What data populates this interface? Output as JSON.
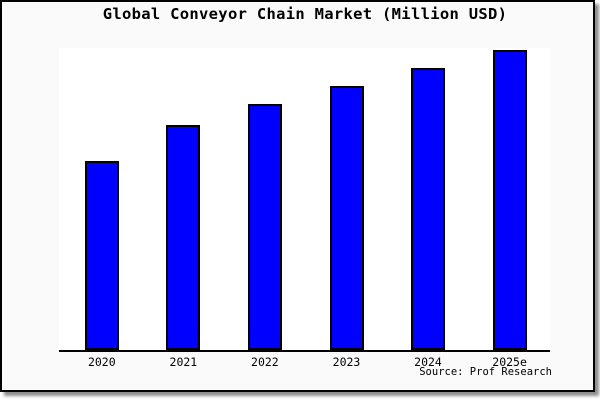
{
  "chart_data": {
    "type": "bar",
    "title": "Global Conveyor Chain Market (Million USD)",
    "categories": [
      "2020",
      "2021",
      "2022",
      "2023",
      "2024",
      "2025e"
    ],
    "values": [
      63,
      75,
      82,
      88,
      94,
      100
    ],
    "units": "relative bar height, max = 100 (no y-axis scale shown in image)",
    "xlabel": "",
    "ylabel": "",
    "grid": false,
    "legend": false,
    "y_axis_visible": false,
    "source": "Source: Prof Research",
    "colors": {
      "bar_fill": "#0000ff",
      "bar_border": "#000000",
      "plot_background": "#ffffff",
      "canvas_background": "#fafafa",
      "frame_border": "#000000",
      "text": "#000000"
    }
  }
}
